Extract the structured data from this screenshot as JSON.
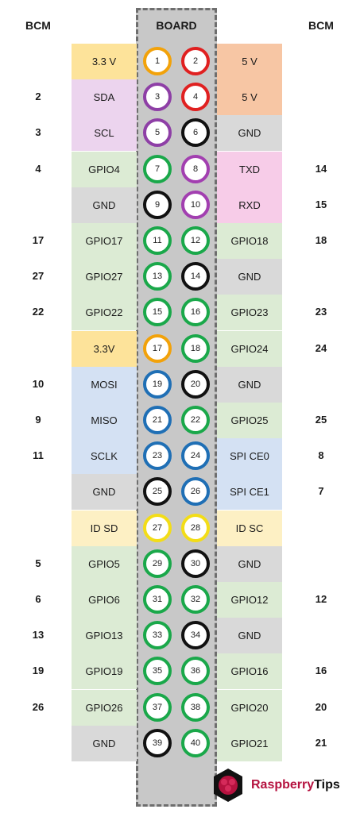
{
  "headers": {
    "bcm_left": "BCM",
    "board": "BOARD",
    "bcm_right": "BCM"
  },
  "rows": [
    {
      "left": {
        "label": "3.3 V",
        "bcm": "",
        "pin": "1",
        "color": "power3"
      },
      "right": {
        "label": "5 V",
        "bcm": "",
        "pin": "2",
        "color": "power5"
      }
    },
    {
      "left": {
        "label": "SDA",
        "bcm": "2",
        "pin": "3",
        "color": "i2c"
      },
      "right": {
        "label": "5 V",
        "bcm": "",
        "pin": "4",
        "color": "power5"
      }
    },
    {
      "left": {
        "label": "SCL",
        "bcm": "3",
        "pin": "5",
        "color": "i2c"
      },
      "right": {
        "label": "GND",
        "bcm": "",
        "pin": "6",
        "color": "gnd"
      }
    },
    {
      "left": {
        "label": "GPIO4",
        "bcm": "4",
        "pin": "7",
        "color": "gpio"
      },
      "right": {
        "label": "TXD",
        "bcm": "14",
        "pin": "8",
        "color": "uart"
      }
    },
    {
      "left": {
        "label": "GND",
        "bcm": "",
        "pin": "9",
        "color": "gnd"
      },
      "right": {
        "label": "RXD",
        "bcm": "15",
        "pin": "10",
        "color": "uart"
      }
    },
    {
      "left": {
        "label": "GPIO17",
        "bcm": "17",
        "pin": "11",
        "color": "gpio"
      },
      "right": {
        "label": "GPIO18",
        "bcm": "18",
        "pin": "12",
        "color": "gpio"
      }
    },
    {
      "left": {
        "label": "GPIO27",
        "bcm": "27",
        "pin": "13",
        "color": "gpio"
      },
      "right": {
        "label": "GND",
        "bcm": "",
        "pin": "14",
        "color": "gnd"
      }
    },
    {
      "left": {
        "label": "GPIO22",
        "bcm": "22",
        "pin": "15",
        "color": "gpio"
      },
      "right": {
        "label": "GPIO23",
        "bcm": "23",
        "pin": "16",
        "color": "gpio"
      }
    },
    {
      "left": {
        "label": "3.3V",
        "bcm": "",
        "pin": "17",
        "color": "power3"
      },
      "right": {
        "label": "GPIO24",
        "bcm": "24",
        "pin": "18",
        "color": "gpio"
      }
    },
    {
      "left": {
        "label": "MOSI",
        "bcm": "10",
        "pin": "19",
        "color": "spi"
      },
      "right": {
        "label": "GND",
        "bcm": "",
        "pin": "20",
        "color": "gnd"
      }
    },
    {
      "left": {
        "label": "MISO",
        "bcm": "9",
        "pin": "21",
        "color": "spi"
      },
      "right": {
        "label": "GPIO25",
        "bcm": "25",
        "pin": "22",
        "color": "gpio"
      }
    },
    {
      "left": {
        "label": "SCLK",
        "bcm": "11",
        "pin": "23",
        "color": "spi"
      },
      "right": {
        "label": "SPI CE0",
        "bcm": "8",
        "pin": "24",
        "color": "spi"
      }
    },
    {
      "left": {
        "label": "GND",
        "bcm": "",
        "pin": "25",
        "color": "gnd"
      },
      "right": {
        "label": "SPI CE1",
        "bcm": "7",
        "pin": "26",
        "color": "spi"
      }
    },
    {
      "left": {
        "label": "ID SD",
        "bcm": "",
        "pin": "27",
        "color": "id"
      },
      "right": {
        "label": "ID SC",
        "bcm": "",
        "pin": "28",
        "color": "id"
      }
    },
    {
      "left": {
        "label": "GPIO5",
        "bcm": "5",
        "pin": "29",
        "color": "gpio"
      },
      "right": {
        "label": "GND",
        "bcm": "",
        "pin": "30",
        "color": "gnd"
      }
    },
    {
      "left": {
        "label": "GPIO6",
        "bcm": "6",
        "pin": "31",
        "color": "gpio"
      },
      "right": {
        "label": "GPIO12",
        "bcm": "12",
        "pin": "32",
        "color": "gpio"
      }
    },
    {
      "left": {
        "label": "GPIO13",
        "bcm": "13",
        "pin": "33",
        "color": "gpio"
      },
      "right": {
        "label": "GND",
        "bcm": "",
        "pin": "34",
        "color": "gnd"
      }
    },
    {
      "left": {
        "label": "GPIO19",
        "bcm": "19",
        "pin": "35",
        "color": "gpio"
      },
      "right": {
        "label": "GPIO16",
        "bcm": "16",
        "pin": "36",
        "color": "gpio"
      }
    },
    {
      "left": {
        "label": "GPIO26",
        "bcm": "26",
        "pin": "37",
        "color": "gpio"
      },
      "right": {
        "label": "GPIO20",
        "bcm": "20",
        "pin": "38",
        "color": "gpio"
      }
    },
    {
      "left": {
        "label": "GND",
        "bcm": "",
        "pin": "39",
        "color": "gnd"
      },
      "right": {
        "label": "GPIO21",
        "bcm": "21",
        "pin": "40",
        "color": "gpio"
      }
    }
  ],
  "palette": {
    "power3": {
      "bg": "#fde39a",
      "ring": "#f2a20a"
    },
    "power5": {
      "bg": "#f7c6a4",
      "ring": "#e02020"
    },
    "i2c": {
      "bg": "#ecd4ee",
      "ring": "#8e3fa6"
    },
    "gnd": {
      "bg": "#d9d9d9",
      "ring": "#111111"
    },
    "gpio": {
      "bg": "#dcebd4",
      "ring": "#1aa84a"
    },
    "uart": {
      "bg": "#f7cce8",
      "ring": "#a23fb0"
    },
    "spi": {
      "bg": "#d4e1f3",
      "ring": "#1f6fb5"
    },
    "id": {
      "bg": "#fdf0c4",
      "ring": "#f3dd17"
    }
  },
  "logo": {
    "text_prefix": "Raspberry",
    "text_suffix": "Tips",
    "icon": "raspberry-icon"
  }
}
